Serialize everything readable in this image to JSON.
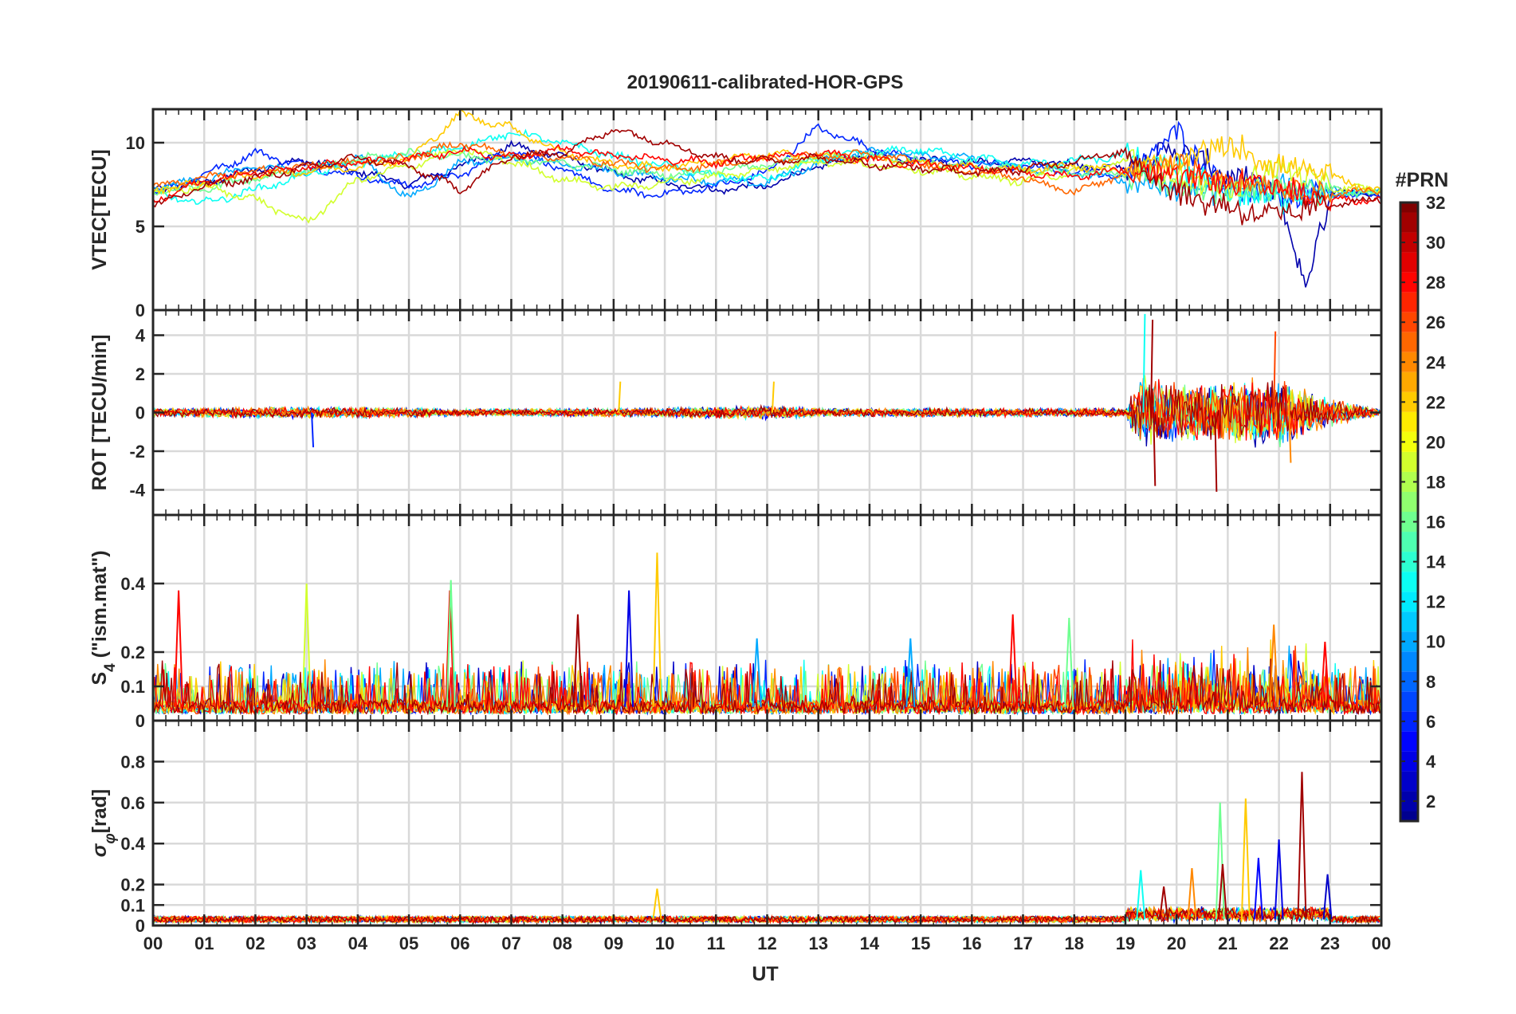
{
  "chart_data": {
    "type": "line",
    "title": "20190611-calibrated-HOR-GPS",
    "xlabel": "UT",
    "x_tick_labels": [
      "00",
      "01",
      "02",
      "03",
      "04",
      "05",
      "06",
      "07",
      "08",
      "09",
      "10",
      "11",
      "12",
      "13",
      "14",
      "15",
      "16",
      "17",
      "18",
      "19",
      "20",
      "21",
      "22",
      "23",
      "00"
    ],
    "xlim": [
      0,
      24
    ],
    "colorbar": {
      "title": "#PRN",
      "range": [
        1,
        32
      ],
      "tick_labels": [
        "2",
        "4",
        "6",
        "8",
        "10",
        "12",
        "14",
        "16",
        "18",
        "20",
        "22",
        "24",
        "26",
        "28",
        "30",
        "32"
      ],
      "tick_values": [
        2,
        4,
        6,
        8,
        10,
        12,
        14,
        16,
        18,
        20,
        22,
        24,
        26,
        28,
        30,
        32
      ],
      "colormap": "jet",
      "colors": [
        "#00008f",
        "#0000ff",
        "#0080ff",
        "#00ffff",
        "#80ff80",
        "#ffff00",
        "#ff8000",
        "#ff0000",
        "#800000"
      ]
    },
    "panels": [
      {
        "id": "vtec",
        "ylabel": "VTEC[TECU]",
        "ylim": [
          0,
          12
        ],
        "y_ticks": [
          0,
          5,
          10
        ],
        "y_tick_labels": [
          "0",
          "5",
          "10"
        ],
        "series": [
          {
            "name": "PRN 2",
            "prn": 2,
            "x": [
              0,
              1,
              2,
              3,
              4,
              5,
              6,
              7,
              8,
              9,
              10,
              11,
              12,
              13,
              14,
              15,
              16,
              17,
              18,
              19,
              20,
              21,
              22,
              22.5,
              23,
              24
            ],
            "values": [
              7.2,
              7.6,
              8.4,
              9.0,
              8.3,
              7.5,
              8.6,
              9.8,
              9.2,
              8.1,
              7.6,
              7.2,
              7.4,
              8.6,
              9.3,
              9.0,
              8.8,
              8.9,
              8.7,
              8.4,
              9.7,
              8.0,
              7.1,
              1.2,
              7.0,
              6.9
            ]
          },
          {
            "name": "PRN 6",
            "prn": 6,
            "x": [
              0,
              1,
              2,
              3,
              4,
              5,
              6,
              7,
              8,
              9,
              10,
              11,
              12,
              13,
              14,
              15,
              16,
              17,
              18,
              19,
              20,
              21,
              22,
              23,
              24
            ],
            "values": [
              7.0,
              8.1,
              9.4,
              8.6,
              8.0,
              7.4,
              8.1,
              9.6,
              8.4,
              7.1,
              6.9,
              7.4,
              8.2,
              10.9,
              9.7,
              9.0,
              8.7,
              8.6,
              8.3,
              8.0,
              10.6,
              7.2,
              6.8,
              6.9,
              6.8
            ]
          },
          {
            "name": "PRN 10",
            "prn": 10,
            "x": [
              0,
              1,
              2,
              3,
              4,
              5,
              6,
              7,
              8,
              9,
              10,
              11,
              12,
              13,
              14,
              15,
              16,
              17,
              18,
              19,
              20,
              21,
              22,
              23,
              24
            ],
            "values": [
              7.3,
              7.8,
              8.6,
              8.2,
              9.2,
              6.6,
              8.8,
              9.1,
              8.7,
              8.3,
              7.9,
              7.7,
              7.6,
              8.8,
              9.5,
              9.3,
              9.0,
              8.5,
              8.2,
              7.8,
              7.2,
              7.0,
              7.4,
              7.1,
              7.0
            ]
          },
          {
            "name": "PRN 13",
            "prn": 13,
            "x": [
              0,
              1,
              2,
              3,
              4,
              5,
              6,
              7,
              8,
              9,
              10,
              11,
              12,
              13,
              14,
              15,
              16,
              17,
              18,
              19,
              20,
              21,
              22,
              23,
              24
            ],
            "values": [
              6.9,
              6.4,
              7.2,
              8.1,
              8.8,
              9.3,
              9.7,
              10.6,
              10.0,
              9.2,
              8.6,
              8.0,
              7.8,
              9.0,
              9.4,
              9.6,
              9.1,
              8.7,
              8.9,
              9.2,
              8.5,
              7.2,
              6.6,
              6.9,
              7.1
            ]
          },
          {
            "name": "PRN 16",
            "prn": 16,
            "x": [
              0,
              1,
              2,
              3,
              4,
              5,
              6,
              7,
              8,
              9,
              10,
              11,
              12,
              13,
              14,
              15,
              16,
              17,
              18,
              19,
              20,
              21,
              22,
              23,
              24
            ],
            "values": [
              7.1,
              7.3,
              7.9,
              8.4,
              9.0,
              9.4,
              9.2,
              9.0,
              8.8,
              8.4,
              8.1,
              8.3,
              8.7,
              9.1,
              9.2,
              8.9,
              8.6,
              8.4,
              8.2,
              8.1,
              7.5,
              7.0,
              7.3,
              7.1,
              7.0
            ]
          },
          {
            "name": "PRN 19",
            "prn": 19,
            "x": [
              0,
              1,
              2,
              3,
              4,
              5,
              6,
              7,
              8,
              9,
              10,
              11,
              12,
              13,
              14,
              15,
              16,
              17,
              18,
              19,
              20,
              21,
              22,
              23,
              24
            ],
            "values": [
              7.0,
              7.4,
              6.6,
              5.2,
              7.8,
              8.6,
              9.6,
              8.9,
              7.8,
              7.3,
              7.6,
              8.0,
              8.4,
              8.9,
              8.7,
              8.4,
              8.0,
              7.7,
              8.3,
              8.9,
              8.0,
              7.1,
              8.6,
              7.3,
              7.2
            ]
          },
          {
            "name": "PRN 22",
            "prn": 22,
            "x": [
              0,
              1,
              2,
              3,
              4,
              5,
              6,
              7,
              8,
              9,
              10,
              11,
              12,
              13,
              14,
              15,
              16,
              17,
              18,
              19,
              20,
              21,
              22,
              23,
              24
            ],
            "values": [
              7.2,
              7.6,
              8.1,
              8.3,
              8.6,
              9.0,
              11.7,
              10.9,
              9.4,
              8.7,
              8.5,
              8.9,
              9.3,
              9.2,
              9.0,
              8.8,
              8.5,
              8.4,
              8.6,
              8.3,
              8.8,
              9.9,
              8.6,
              8.0,
              7.0
            ]
          },
          {
            "name": "PRN 25",
            "prn": 25,
            "x": [
              0,
              1,
              2,
              3,
              4,
              5,
              6,
              7,
              8,
              9,
              10,
              11,
              12,
              13,
              14,
              15,
              16,
              17,
              18,
              19,
              20,
              21,
              22,
              23,
              24
            ],
            "values": [
              7.4,
              7.9,
              8.3,
              8.6,
              8.8,
              9.1,
              10.0,
              9.3,
              9.1,
              8.8,
              8.4,
              8.7,
              9.0,
              9.2,
              9.3,
              8.8,
              8.3,
              7.9,
              7.0,
              8.2,
              8.6,
              7.9,
              7.4,
              7.0,
              7.1
            ]
          },
          {
            "name": "PRN 28",
            "prn": 28,
            "x": [
              0,
              1,
              2,
              3,
              4,
              5,
              6,
              7,
              8,
              9,
              10,
              11,
              12,
              13,
              14,
              15,
              16,
              17,
              18,
              19,
              20,
              21,
              22,
              23,
              24
            ],
            "values": [
              6.5,
              7.7,
              8.2,
              8.6,
              8.8,
              9.0,
              9.5,
              9.1,
              9.6,
              9.2,
              9.0,
              8.8,
              9.2,
              9.4,
              9.0,
              8.7,
              8.5,
              8.2,
              8.0,
              8.4,
              7.9,
              7.6,
              7.3,
              6.6,
              6.6
            ]
          },
          {
            "name": "PRN 31",
            "prn": 31,
            "x": [
              0,
              1,
              2,
              3,
              4,
              5,
              6,
              7,
              8,
              9,
              10,
              11,
              12,
              13,
              14,
              15,
              16,
              17,
              18,
              19,
              20,
              21,
              22,
              23,
              24
            ],
            "values": [
              6.2,
              7.4,
              7.9,
              8.5,
              9.1,
              8.6,
              7.2,
              9.2,
              9.4,
              10.8,
              10.0,
              9.1,
              8.9,
              9.1,
              8.7,
              8.5,
              8.2,
              8.4,
              8.9,
              9.5,
              7.0,
              6.2,
              5.5,
              6.4,
              6.6
            ]
          }
        ]
      },
      {
        "id": "rot",
        "ylabel": "ROT [TECU/min]",
        "ylim": [
          -5.3,
          5.3
        ],
        "y_ticks": [
          -4,
          -2,
          0,
          2,
          4
        ],
        "y_tick_labels": [
          "-4",
          "-2",
          "0",
          "2",
          "4"
        ],
        "noise_profile": {
          "hours": [
            0,
            3,
            5,
            6,
            9,
            10,
            12,
            13,
            15,
            19,
            19.3,
            20,
            21,
            22,
            23,
            24
          ],
          "amplitude": [
            0.3,
            0.4,
            0.35,
            0.25,
            0.3,
            0.35,
            0.5,
            0.3,
            0.3,
            0.3,
            2.5,
            2.0,
            2.2,
            2.4,
            1.0,
            0.2
          ]
        },
        "spikes": [
          {
            "prn": 13,
            "hour": 19.35,
            "value": 5.1
          },
          {
            "prn": 31,
            "hour": 19.5,
            "value": 4.8
          },
          {
            "prn": 31,
            "hour": 19.55,
            "value": -3.8
          },
          {
            "prn": 31,
            "hour": 20.75,
            "value": -4.1
          },
          {
            "prn": 26,
            "hour": 21.9,
            "value": 4.2
          },
          {
            "prn": 24,
            "hour": 22.2,
            "value": -2.6
          },
          {
            "prn": 6,
            "hour": 3.1,
            "value": -1.8
          },
          {
            "prn": 22,
            "hour": 9.1,
            "value": 1.6
          },
          {
            "prn": 22,
            "hour": 12.1,
            "value": 1.6
          }
        ]
      },
      {
        "id": "s4",
        "ylabel": "S4 (\"ism.mat\")",
        "ylabel_main": "S",
        "ylabel_sub": "4",
        "ylabel_rest": " (\"ism.mat\")",
        "ylim": [
          0,
          0.6
        ],
        "y_ticks": [
          0,
          0.1,
          0.2,
          0.4
        ],
        "y_tick_labels": [
          "0",
          "0.1",
          "0.2",
          "0.4"
        ],
        "baseline": 0.04,
        "peaks": [
          {
            "prn": 28,
            "hour": 0.5,
            "value": 0.38
          },
          {
            "prn": 19,
            "hour": 3.0,
            "value": 0.4
          },
          {
            "prn": 28,
            "hour": 5.8,
            "value": 0.38
          },
          {
            "prn": 16,
            "hour": 5.82,
            "value": 0.41
          },
          {
            "prn": 31,
            "hour": 8.3,
            "value": 0.31
          },
          {
            "prn": 4,
            "hour": 9.3,
            "value": 0.38
          },
          {
            "prn": 22,
            "hour": 9.85,
            "value": 0.49
          },
          {
            "prn": 28,
            "hour": 16.8,
            "value": 0.31
          },
          {
            "prn": 16,
            "hour": 17.9,
            "value": 0.3
          },
          {
            "prn": 24,
            "hour": 21.9,
            "value": 0.28
          },
          {
            "prn": 28,
            "hour": 22.9,
            "value": 0.23
          },
          {
            "prn": 10,
            "hour": 11.8,
            "value": 0.24
          },
          {
            "prn": 10,
            "hour": 14.8,
            "value": 0.24
          }
        ]
      },
      {
        "id": "sigma_phi",
        "ylabel": "σφ[rad]",
        "ylabel_main": "σ",
        "ylabel_sub": "φ",
        "ylabel_rest": "[rad]",
        "ylim": [
          0,
          1.0
        ],
        "y_ticks": [
          0,
          0.1,
          0.2,
          0.4,
          0.6,
          0.8
        ],
        "y_tick_labels": [
          "0",
          "0.1",
          "0.2",
          "0.4",
          "0.6",
          "0.8"
        ],
        "baseline": 0.03,
        "peaks": [
          {
            "prn": 22,
            "hour": 9.85,
            "value": 0.18
          },
          {
            "prn": 13,
            "hour": 19.3,
            "value": 0.27
          },
          {
            "prn": 31,
            "hour": 19.75,
            "value": 0.19
          },
          {
            "prn": 24,
            "hour": 20.3,
            "value": 0.28
          },
          {
            "prn": 16,
            "hour": 20.85,
            "value": 0.6
          },
          {
            "prn": 31,
            "hour": 20.9,
            "value": 0.3
          },
          {
            "prn": 22,
            "hour": 21.35,
            "value": 0.62
          },
          {
            "prn": 5,
            "hour": 21.6,
            "value": 0.33
          },
          {
            "prn": 4,
            "hour": 22.0,
            "value": 0.42
          },
          {
            "prn": 31,
            "hour": 22.45,
            "value": 0.75
          },
          {
            "prn": 3,
            "hour": 22.95,
            "value": 0.25
          }
        ]
      }
    ]
  }
}
